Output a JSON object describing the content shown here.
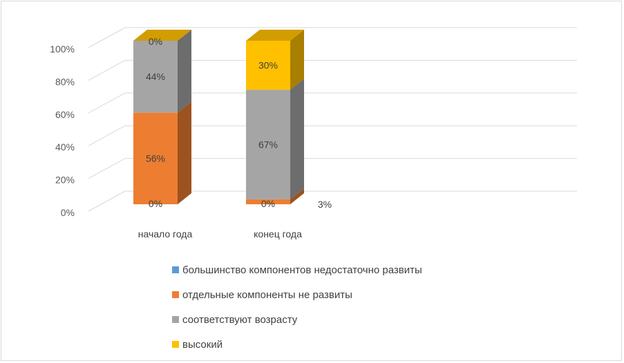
{
  "chart_data": {
    "type": "bar",
    "stacked": true,
    "percent": true,
    "three_d": true,
    "categories": [
      "начало года",
      "конец года"
    ],
    "series": [
      {
        "name": "большинство компонентов недостаточно развиты",
        "values": [
          0,
          0
        ],
        "labels": [
          "0%",
          "0%"
        ],
        "color": "#5b9bd5"
      },
      {
        "name": "отдельные компоненты не развиты",
        "values": [
          56,
          3
        ],
        "labels": [
          "56%",
          "3%"
        ],
        "color": "#ed7d31"
      },
      {
        "name": "соответствуют возрасту",
        "values": [
          44,
          67
        ],
        "labels": [
          "44%",
          "67%"
        ],
        "color": "#a5a5a5"
      },
      {
        "name": "высокий",
        "values": [
          0,
          30
        ],
        "labels": [
          "0%",
          "30%"
        ],
        "color": "#ffc000"
      }
    ],
    "yticks": [
      "0%",
      "20%",
      "40%",
      "60%",
      "80%",
      "100%"
    ],
    "ylim": [
      0,
      100
    ],
    "grid": true,
    "legend": "bottom",
    "title": "",
    "xlabel": "",
    "ylabel": ""
  }
}
